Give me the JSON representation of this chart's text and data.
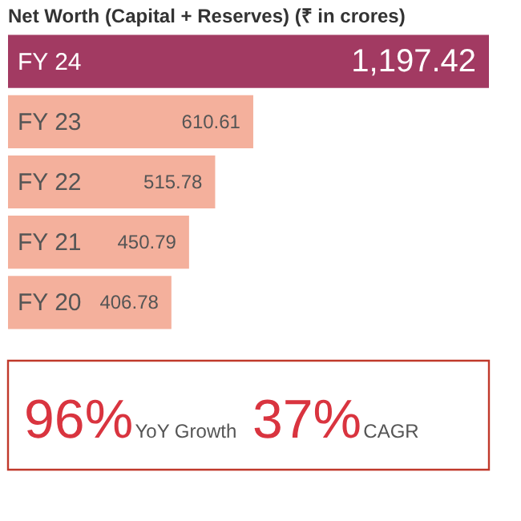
{
  "chart_data": {
    "type": "bar",
    "orientation": "horizontal",
    "title": "Net Worth (Capital + Reserves) (₹ in crores)",
    "categories": [
      "FY 24",
      "FY 23",
      "FY 22",
      "FY 21",
      "FY 20"
    ],
    "values": [
      1197.42,
      610.61,
      515.78,
      450.79,
      406.78
    ],
    "colors": [
      "#a23a62",
      "#f4b09c",
      "#f4b09c",
      "#f4b09c",
      "#f4b09c"
    ],
    "value_labels": [
      "1,197.42",
      "610.61",
      "515.78",
      "450.79",
      "406.78"
    ],
    "annotations": [
      "96%",
      "YoY Growth",
      "37%",
      "CAGR"
    ]
  }
}
